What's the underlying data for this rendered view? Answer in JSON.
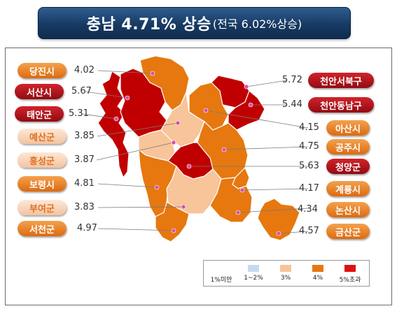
{
  "title": {
    "main": "충남 4.71% 상승",
    "sub": "(전국 6.02%상승)"
  },
  "colors": {
    "level_under1": "#c6d9f1",
    "level_1_2": "#c6d9f1",
    "level_3": "#f8c49a",
    "level_4": "#e6780f",
    "level_over5": "#c00000"
  },
  "regions": [
    {
      "name": "당진시",
      "value": "4.02"
    },
    {
      "name": "서산시",
      "value": "5.67"
    },
    {
      "name": "태안군",
      "value": "5.31"
    },
    {
      "name": "예산군",
      "value": "3.85"
    },
    {
      "name": "홍성군",
      "value": "3.87"
    },
    {
      "name": "보령시",
      "value": "4.81"
    },
    {
      "name": "부여군",
      "value": "3.83"
    },
    {
      "name": "서천군",
      "value": "4.97"
    },
    {
      "name": "천안서북구",
      "value": "5.72"
    },
    {
      "name": "천안동남구",
      "value": "5.44"
    },
    {
      "name": "아산시",
      "value": "4.15"
    },
    {
      "name": "공주시",
      "value": "4.75"
    },
    {
      "name": "청양군",
      "value": "5.63"
    },
    {
      "name": "계룡시",
      "value": "4.17"
    },
    {
      "name": "논산시",
      "value": "4.34"
    },
    {
      "name": "금산군",
      "value": "4.57"
    }
  ],
  "legend": [
    {
      "label": "1%미만",
      "color": ""
    },
    {
      "label": "1~2%",
      "color": "#c6d9f1"
    },
    {
      "label": "3%",
      "color": "#f8c49a"
    },
    {
      "label": "4%",
      "color": "#e6780f"
    },
    {
      "label": "5%초과",
      "color": "#e01010"
    }
  ]
}
